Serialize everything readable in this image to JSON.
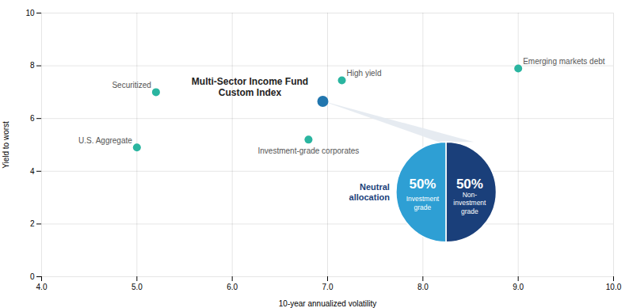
{
  "chart_data": [
    {
      "type": "scatter",
      "xlabel": "10-year annualized volatility",
      "ylabel": "Yield to worst",
      "x": [
        5.0,
        5.2,
        6.8,
        7.15,
        9.0,
        6.95
      ],
      "values": [
        4.9,
        7.0,
        5.2,
        7.45,
        7.9,
        6.65
      ],
      "labels": [
        "U.S. Aggregate",
        "Securitized",
        "Investment-grade corporates",
        "High yield",
        "Emerging markets debt",
        "Multi-Sector Income Fund\nCustom Index"
      ],
      "colors": [
        "#2ab5a0",
        "#2ab5a0",
        "#2ab5a0",
        "#2ab5a0",
        "#2ab5a0",
        "#2176ae"
      ],
      "xlim": [
        4,
        10
      ],
      "ylim": [
        0,
        10
      ],
      "xticks": [
        4,
        5,
        6,
        7,
        8,
        9,
        10
      ],
      "yticks": [
        0,
        2,
        4,
        6,
        8,
        10
      ],
      "grid": true
    },
    {
      "type": "pie",
      "categories": [
        "Investment\ngrade",
        "Non-\ninvestment\ngrade"
      ],
      "values": [
        50,
        50
      ],
      "value_labels": [
        "50%",
        "50%"
      ],
      "colors": [
        "#2e9fd4",
        "#1a3f7a"
      ],
      "data_labels": true,
      "annotations": [
        {
          "text": "Neutral\nallocation",
          "color": "#1a3f7a"
        }
      ]
    }
  ]
}
